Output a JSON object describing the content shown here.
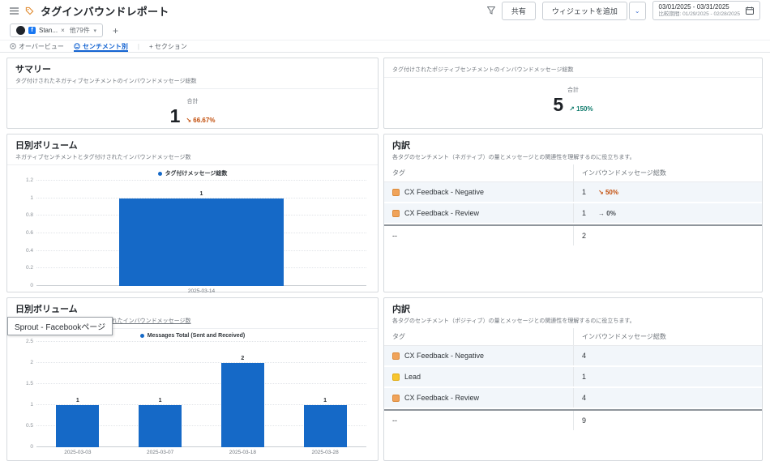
{
  "header": {
    "title": "タグインバウンドレポート",
    "share_label": "共有",
    "add_widget_label": "ウィジェットを追加",
    "date_range": "03/01/2025 - 03/31/2025",
    "compare_range": "比較期間: 01/29/2025 - 02/28/2025"
  },
  "filter_bar": {
    "chip_label": "Stan...",
    "chip_remove": "×",
    "chip_more": "他79件",
    "add_label": "+"
  },
  "tabs": [
    {
      "label": "オーバービュー"
    },
    {
      "label": "センチメント別"
    },
    {
      "label": "+ セクション"
    }
  ],
  "summary_negative": {
    "title": "サマリー",
    "subtitle": "タグ付けされたネガティブセンチメントのインバウンドメッセージ総数",
    "metric_label": "合計",
    "value": "1",
    "delta_arrow": "↘",
    "delta": "66.67%"
  },
  "summary_positive": {
    "subtitle": "タグ付けされたポジティブセンチメントのインバウンドメッセージ総数",
    "metric_label": "合計",
    "value": "5",
    "delta_arrow": "↗",
    "delta": "150%"
  },
  "chart_data": [
    {
      "type": "bar",
      "title": "日別ボリューム",
      "subtitle": "ネガティブセンチメントとタグ付けされたインバウンドメッセージ数",
      "legend": "タグ付けメッセージ総数",
      "legend_position": "top",
      "categories": [
        "2025-03-14"
      ],
      "values": [
        1
      ],
      "ymax": 1.2,
      "yticks": [
        "1.2",
        "1",
        "0.8",
        "0.6",
        "0.4",
        "0.2",
        "0"
      ],
      "bar_width_pct": 50,
      "color": "#1569C7",
      "grid": true
    },
    {
      "type": "bar",
      "title": "日別ボリューム",
      "subtitle": "ポジティブセンチメントとタグ付けされたインバウンドメッセージ数",
      "tooltip": "Sprout - Facebookページ",
      "legend": "Messages Total (Sent and Received)",
      "legend_position": "top",
      "categories": [
        "2025-03-03",
        "2025-03-07",
        "2025-03-18",
        "2025-03-28"
      ],
      "values": [
        1,
        1,
        2,
        1
      ],
      "ymax": 2.5,
      "yticks": [
        "2.5",
        "2",
        "1.5",
        "1",
        "0.5",
        "0"
      ],
      "bar_width_pct": 13,
      "color": "#1569C7",
      "grid": true
    }
  ],
  "breakdown_negative": {
    "title": "内訳",
    "subtitle": "各タグのセンチメント（ネガティブ）の量とメッセージとの関連性を理解するのに役立ちます。",
    "col_tag": "タグ",
    "col_value": "インバウンドメッセージ総数",
    "rows": [
      {
        "tag": "CX Feedback - Negative",
        "value": "1",
        "delta_arrow": "↘",
        "delta": "50%"
      },
      {
        "tag": "CX Feedback - Review",
        "value": "1",
        "delta_arrow": "→",
        "delta": "0%"
      },
      {
        "tag": "--",
        "value": "2"
      }
    ]
  },
  "breakdown_positive": {
    "title": "内訳",
    "subtitle": "各タグのセンチメント（ポジティブ）の量とメッセージとの関連性を理解するのに役立ちます。",
    "col_tag": "タグ",
    "col_value": "インバウンドメッセージ総数",
    "rows": [
      {
        "tag": "CX Feedback - Negative",
        "value": "4"
      },
      {
        "tag": "Lead",
        "value": "1"
      },
      {
        "tag": "CX Feedback - Review",
        "value": "4"
      },
      {
        "tag": "--",
        "value": "9"
      }
    ]
  },
  "colors": {
    "bar_blue": "#1569C7",
    "accent_blue": "#1464D2",
    "delta_down": "#C24D0A",
    "delta_up": "#0C7A6B",
    "tag_orange": "#F0A35A",
    "tag_yellow": "#F7C52E"
  }
}
